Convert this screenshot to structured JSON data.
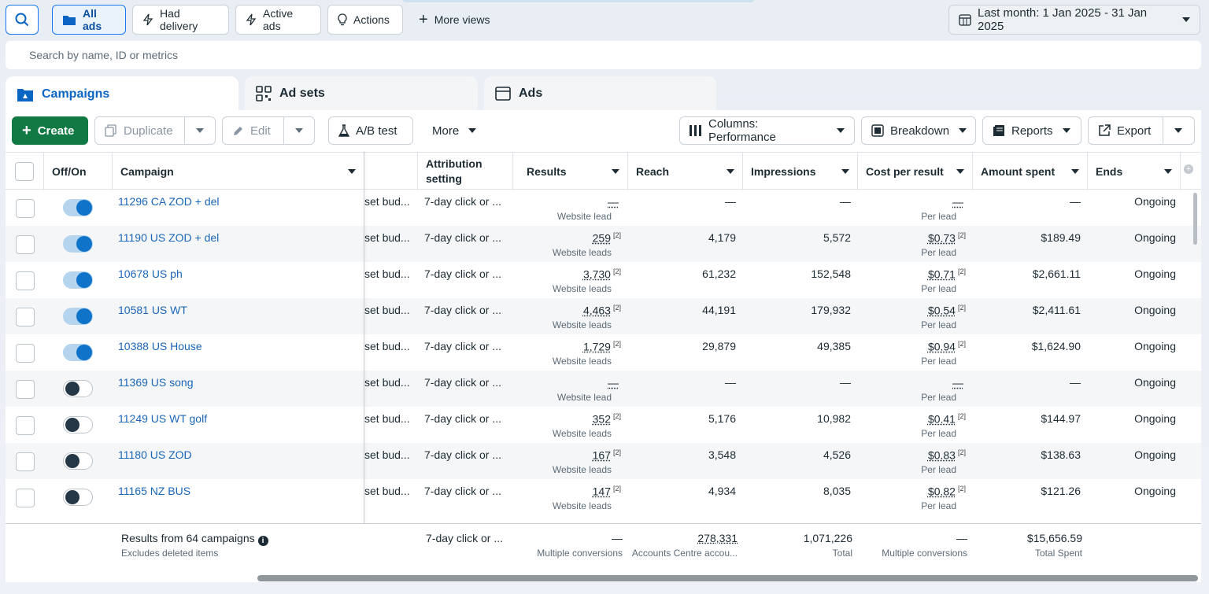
{
  "views": {
    "all_ads": "All ads",
    "had_delivery": "Had delivery",
    "active_ads": "Active ads",
    "actions": "Actions",
    "more_views": "More views",
    "date_range": "Last month: 1 Jan 2025 - 31 Jan 2025"
  },
  "search": {
    "placeholder": "Search by name, ID or metrics"
  },
  "tabs": {
    "campaigns": "Campaigns",
    "ad_sets": "Ad sets",
    "ads": "Ads"
  },
  "toolbar": {
    "create": "Create",
    "duplicate": "Duplicate",
    "edit": "Edit",
    "ab_test": "A/B test",
    "more": "More",
    "columns": "Columns: Performance",
    "breakdown": "Breakdown",
    "reports": "Reports",
    "export": "Export"
  },
  "columns": {
    "off_on": "Off/On",
    "campaign": "Campaign",
    "attribution_1": "Attribution",
    "attribution_2": "setting",
    "results": "Results",
    "reach": "Reach",
    "impressions": "Impressions",
    "cost_per_result": "Cost per result",
    "amount_spent": "Amount spent",
    "ends": "Ends"
  },
  "rows": [
    {
      "on": true,
      "name": "11296 CA ZOD + del",
      "budget": "set bud...",
      "attr": "7-day click or ...",
      "results": "—",
      "results_sup": "",
      "results_sub": "Website lead",
      "reach": "—",
      "impressions": "—",
      "cpr": "—",
      "cpr_sup": "",
      "cpr_sub": "Per lead",
      "spent": "—",
      "ends": "Ongoing"
    },
    {
      "on": true,
      "name": "11190 US ZOD + del",
      "budget": "set bud...",
      "attr": "7-day click or ...",
      "results": "259",
      "results_sup": "[2]",
      "results_sub": "Website leads",
      "reach": "4,179",
      "impressions": "5,572",
      "cpr": "$0.73",
      "cpr_sup": "[2]",
      "cpr_sub": "Per lead",
      "spent": "$189.49",
      "ends": "Ongoing"
    },
    {
      "on": true,
      "name": "10678 US ph",
      "budget": "set bud...",
      "attr": "7-day click or ...",
      "results": "3,730",
      "results_sup": "[2]",
      "results_sub": "Website leads",
      "reach": "61,232",
      "impressions": "152,548",
      "cpr": "$0.71",
      "cpr_sup": "[2]",
      "cpr_sub": "Per lead",
      "spent": "$2,661.11",
      "ends": "Ongoing"
    },
    {
      "on": true,
      "name": "10581 US WT",
      "budget": "set bud...",
      "attr": "7-day click or ...",
      "results": "4,463",
      "results_sup": "[2]",
      "results_sub": "Website leads",
      "reach": "44,191",
      "impressions": "179,932",
      "cpr": "$0.54",
      "cpr_sup": "[2]",
      "cpr_sub": "Per lead",
      "spent": "$2,411.61",
      "ends": "Ongoing"
    },
    {
      "on": true,
      "name": "10388 US House",
      "budget": "set bud...",
      "attr": "7-day click or ...",
      "results": "1,729",
      "results_sup": "[2]",
      "results_sub": "Website leads",
      "reach": "29,879",
      "impressions": "49,385",
      "cpr": "$0.94",
      "cpr_sup": "[2]",
      "cpr_sub": "Per lead",
      "spent": "$1,624.90",
      "ends": "Ongoing"
    },
    {
      "on": false,
      "name": "11369 US song",
      "budget": "set bud...",
      "attr": "7-day click or ...",
      "results": "—",
      "results_sup": "",
      "results_sub": "Website lead",
      "reach": "—",
      "impressions": "—",
      "cpr": "—",
      "cpr_sup": "",
      "cpr_sub": "Per lead",
      "spent": "—",
      "ends": "Ongoing"
    },
    {
      "on": false,
      "name": "11249 US WT golf",
      "budget": "set bud...",
      "attr": "7-day click or ...",
      "results": "352",
      "results_sup": "[2]",
      "results_sub": "Website leads",
      "reach": "5,176",
      "impressions": "10,982",
      "cpr": "$0.41",
      "cpr_sup": "[2]",
      "cpr_sub": "Per lead",
      "spent": "$144.97",
      "ends": "Ongoing"
    },
    {
      "on": false,
      "name": "11180 US ZOD",
      "budget": "set bud...",
      "attr": "7-day click or ...",
      "results": "167",
      "results_sup": "[2]",
      "results_sub": "Website leads",
      "reach": "3,548",
      "impressions": "4,526",
      "cpr": "$0.83",
      "cpr_sup": "[2]",
      "cpr_sub": "Per lead",
      "spent": "$138.63",
      "ends": "Ongoing"
    },
    {
      "on": false,
      "name": "11165 NZ BUS",
      "budget": "set bud...",
      "attr": "7-day click or ...",
      "results": "147",
      "results_sup": "[2]",
      "results_sub": "Website leads",
      "reach": "4,934",
      "impressions": "8,035",
      "cpr": "$0.82",
      "cpr_sup": "[2]",
      "cpr_sub": "Per lead",
      "spent": "$121.26",
      "ends": "Ongoing"
    }
  ],
  "totals": {
    "label": "Results from 64 campaigns",
    "sublabel": "Excludes deleted items",
    "attr": "7-day click or ...",
    "results": "—",
    "results_sub": "Multiple conversions",
    "reach": "278,331",
    "reach_sub": "Accounts Centre accou...",
    "impressions": "1,071,226",
    "impressions_sub": "Total",
    "cpr": "—",
    "cpr_sub": "Multiple conversions",
    "spent": "$15,656.59",
    "spent_sub": "Total Spent"
  },
  "colors": {
    "accent": "#1877f2",
    "create_green": "#117a44",
    "link": "#1a66b9",
    "toggle_on": "#0f73c9"
  }
}
